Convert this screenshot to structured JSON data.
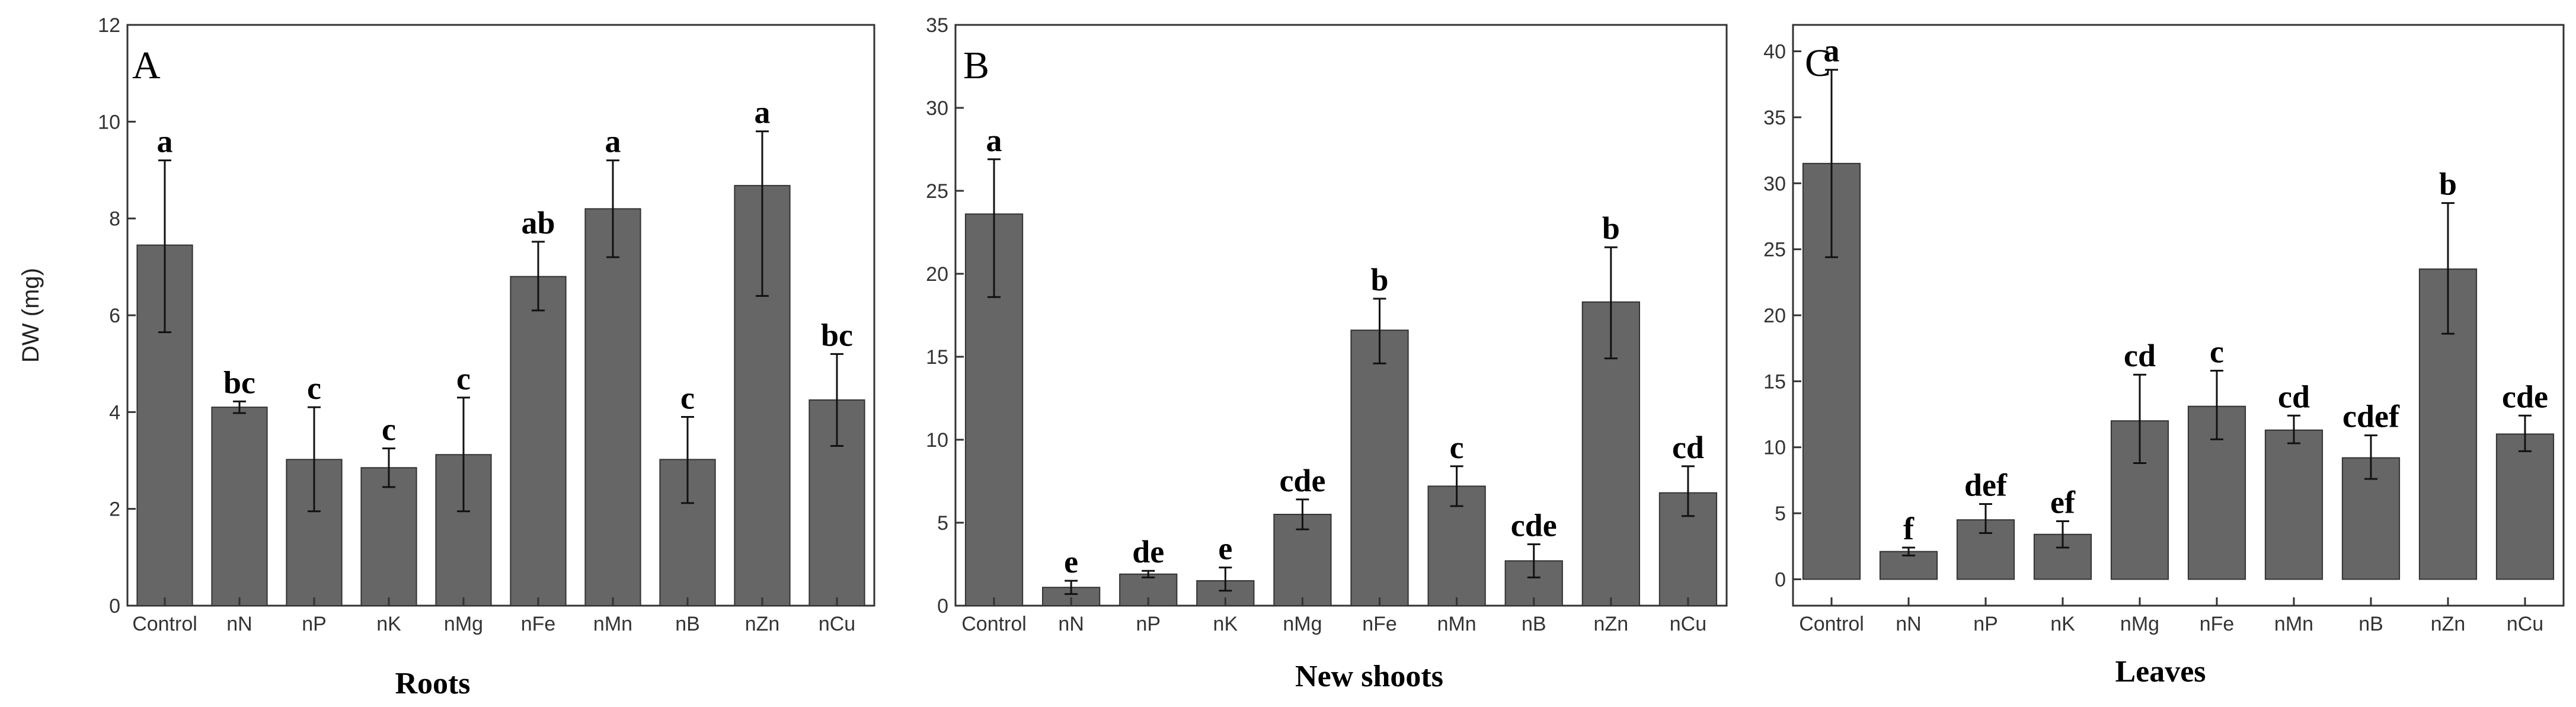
{
  "chart_data": [
    {
      "type": "bar",
      "panel_label": "A",
      "title": "Roots",
      "ylabel": "DW (mg)",
      "ylim": [
        0,
        12
      ],
      "yticks": [
        0,
        2,
        4,
        6,
        8,
        10,
        12
      ],
      "categories": [
        "Control",
        "nN",
        "nP",
        "nK",
        "nMg",
        "nFe",
        "nMn",
        "nB",
        "nZn",
        "nCu"
      ],
      "values": [
        7.45,
        4.1,
        3.02,
        2.85,
        3.12,
        6.8,
        8.2,
        3.02,
        8.68,
        4.25
      ],
      "error_low": [
        5.65,
        3.98,
        1.95,
        2.45,
        1.95,
        6.1,
        7.2,
        2.12,
        6.4,
        3.3
      ],
      "error_high": [
        9.2,
        4.22,
        4.1,
        3.25,
        4.3,
        7.52,
        9.2,
        3.9,
        9.8,
        5.2
      ],
      "significance": [
        "a",
        "bc",
        "c",
        "c",
        "c",
        "ab",
        "a",
        "c",
        "a",
        "bc"
      ],
      "bar_color": "#666666",
      "grid": false
    },
    {
      "type": "bar",
      "panel_label": "B",
      "title": "New shoots",
      "ylabel": "",
      "ylim": [
        0,
        35
      ],
      "yticks": [
        0,
        5,
        10,
        15,
        20,
        25,
        30,
        35
      ],
      "categories": [
        "Control",
        "nN",
        "nP",
        "nK",
        "nMg",
        "nFe",
        "nMn",
        "nB",
        "nZn",
        "nCu"
      ],
      "values": [
        23.6,
        1.1,
        1.9,
        1.5,
        5.5,
        16.6,
        7.2,
        2.7,
        18.3,
        6.8
      ],
      "error_low": [
        18.6,
        0.7,
        1.7,
        0.9,
        4.6,
        14.6,
        6.0,
        1.7,
        14.9,
        5.4
      ],
      "error_high": [
        26.9,
        1.5,
        2.1,
        2.3,
        6.4,
        18.5,
        8.4,
        3.7,
        21.6,
        8.4
      ],
      "significance": [
        "a",
        "e",
        "de",
        "e",
        "cde",
        "b",
        "c",
        "cde",
        "b",
        "cd"
      ],
      "bar_color": "#666666",
      "grid": false
    },
    {
      "type": "bar",
      "panel_label": "C",
      "title": "Leaves",
      "ylabel": "",
      "ylim": [
        -2,
        42
      ],
      "yticks": [
        0,
        5,
        10,
        15,
        20,
        25,
        30,
        35,
        40
      ],
      "categories": [
        "Control",
        "nN",
        "nP",
        "nK",
        "nMg",
        "nFe",
        "nMn",
        "nB",
        "nZn",
        "nCu"
      ],
      "values": [
        31.5,
        2.1,
        4.5,
        3.4,
        12.0,
        13.1,
        11.3,
        9.2,
        23.5,
        11.0
      ],
      "error_low": [
        24.4,
        1.8,
        3.5,
        2.4,
        8.8,
        10.6,
        10.3,
        7.6,
        18.6,
        9.7
      ],
      "error_high": [
        38.6,
        2.4,
        5.7,
        4.4,
        15.5,
        15.8,
        12.4,
        10.9,
        28.5,
        12.4
      ],
      "significance": [
        "a",
        "f",
        "def",
        "ef",
        "cd",
        "c",
        "cd",
        "cdef",
        "b",
        "cde"
      ],
      "bar_color": "#666666",
      "grid": false
    }
  ]
}
